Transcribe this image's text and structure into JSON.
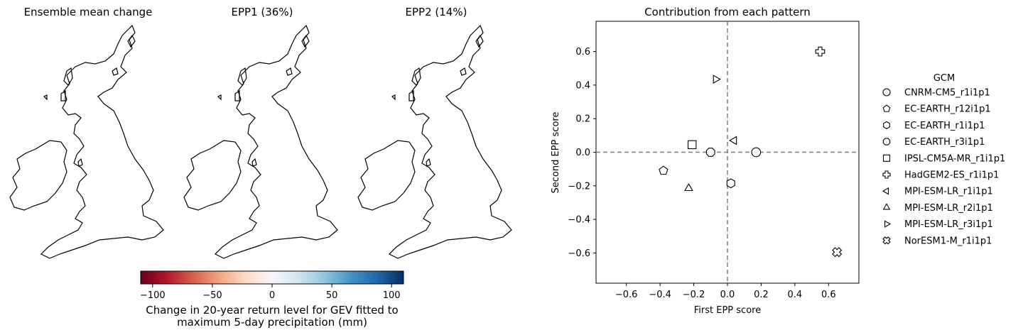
{
  "maps": [
    {
      "title": "Ensemble mean change",
      "pattern": "mean"
    },
    {
      "title": "EPP1 (36%)",
      "pattern": "epp1"
    },
    {
      "title": "EPP2 (14%)",
      "pattern": "epp2"
    }
  ],
  "colorbar": {
    "label_line1": "Change in 20-year return level for GEV fitted to",
    "label_line2": "maximum 5-day precipitation (mm)",
    "range": [
      -110,
      110
    ],
    "ticks": [
      "−100",
      "−50",
      "0",
      "50",
      "100"
    ],
    "tick_values": [
      -100,
      -50,
      0,
      50,
      100
    ],
    "colormap": "RdBu",
    "colors": [
      "#67001f",
      "#b2182b",
      "#d6604d",
      "#f4a582",
      "#fddbc7",
      "#f7f7f7",
      "#d1e5f0",
      "#92c5de",
      "#4393c3",
      "#2166ac",
      "#053061"
    ]
  },
  "chart_data": {
    "type": "scatter",
    "title": "Contribution from each pattern",
    "xlabel": "First EPP score",
    "ylabel": "Second EPP score",
    "xlim": [
      -0.78,
      0.78
    ],
    "ylim": [
      -0.78,
      0.78
    ],
    "xticks": [
      -0.6,
      -0.4,
      -0.2,
      0.0,
      0.2,
      0.4,
      0.6
    ],
    "xtick_labels": [
      "−0.6",
      "−0.4",
      "−0.2",
      "0.0",
      "0.2",
      "0.4",
      "0.6"
    ],
    "yticks": [
      -0.6,
      -0.4,
      -0.2,
      0.0,
      0.2,
      0.4,
      0.6
    ],
    "ytick_labels": [
      "−0.6",
      "−0.4",
      "−0.2",
      "0.0",
      "0.2",
      "0.4",
      "0.6"
    ],
    "reference_lines": {
      "x": 0,
      "y": 0,
      "style": "dashed",
      "color": "#808080"
    },
    "legend": {
      "title": "GCM",
      "placement": "outside-right"
    },
    "series": [
      {
        "name": "CNRM-CM5_r1i1p1",
        "marker": "circle",
        "x": 0.17,
        "y": 0.0
      },
      {
        "name": "EC-EARTH_r12i1p1",
        "marker": "pentagon",
        "x": -0.38,
        "y": -0.11
      },
      {
        "name": "EC-EARTH_r1i1p1",
        "marker": "hexagon",
        "x": 0.02,
        "y": -0.185
      },
      {
        "name": "EC-EARTH_r3i1p1",
        "marker": "octagon",
        "x": -0.1,
        "y": 0.0
      },
      {
        "name": "IPSL-CM5A-MR_r1i1p1",
        "marker": "square",
        "x": -0.21,
        "y": 0.045
      },
      {
        "name": "HadGEM2-ES_r1i1p1",
        "marker": "plus",
        "x": 0.55,
        "y": 0.6
      },
      {
        "name": "MPI-ESM-LR_r1i1p1",
        "marker": "triangle-left",
        "x": 0.04,
        "y": 0.07
      },
      {
        "name": "MPI-ESM-LR_r2i1p1",
        "marker": "triangle-up",
        "x": -0.23,
        "y": -0.215
      },
      {
        "name": "MPI-ESM-LR_r3i1p1",
        "marker": "triangle-right",
        "x": -0.07,
        "y": 0.435
      },
      {
        "name": "NorESM1-M_r1i1p1",
        "marker": "x-filled",
        "x": 0.65,
        "y": -0.595
      }
    ]
  }
}
